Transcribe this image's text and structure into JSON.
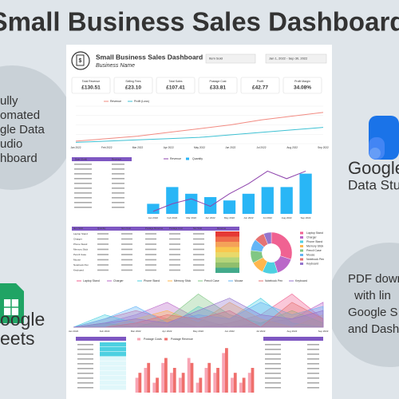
{
  "header": {
    "title": "Small Business Sales Dashboard"
  },
  "left_badge": {
    "lines": [
      "ully",
      "omated",
      "gle Data",
      "udio",
      "hboard"
    ]
  },
  "sheets_badge": {
    "lines": [
      "oogle",
      "eets"
    ]
  },
  "studio_badge": {
    "lines": [
      "Google",
      "Data Stu"
    ]
  },
  "pdf_badge": {
    "lines": [
      "PDF down",
      "with lin",
      "Google S",
      "and Dashb"
    ]
  },
  "dashboard": {
    "title": "Small Business Sales Dashboard",
    "subtitle": "Business Name",
    "filters": [
      "Item Sold",
      "Jan 1, 2022 - Sep 30, 2022"
    ],
    "kpis": [
      {
        "label": "Total Revenue",
        "value": "£130.51"
      },
      {
        "label": "Selling Fees",
        "value": "£23.10"
      },
      {
        "label": "Total Sales",
        "value": "£107.41"
      },
      {
        "label": "Postage Cost",
        "value": "£33.81"
      },
      {
        "label": "Profit",
        "value": "£42.77"
      },
      {
        "label": "Profit Margin",
        "value": "34.08%"
      }
    ],
    "date_table": {
      "header": [
        "Date (Sold)",
        "Revenue"
      ]
    },
    "items_table": {
      "header": [
        "Item Sold",
        "Quantity",
        "Item Cost",
        "Postage Revenue",
        "Postage Cost",
        "Net Total",
        "Revenue"
      ],
      "rows": [
        "Laptop Stand",
        "Charger",
        "Phone Stand",
        "Memory Stick",
        "Pencil Case",
        "Mouse",
        "Notebook Pen",
        "Keyboard"
      ]
    }
  },
  "chart_data": [
    {
      "type": "line",
      "categories": [
        "Jan 2022",
        "Feb 2022",
        "Mar 2022",
        "Apr 2022",
        "May 2022",
        "Jun 2022",
        "Jul 2022",
        "Aug 2022",
        "Sep 2022"
      ],
      "ylim": [
        0,
        30
      ],
      "series": [
        {
          "name": "Revenue",
          "color": "#f28b82",
          "values": [
            2,
            4,
            6,
            9,
            12,
            15,
            19,
            22,
            25
          ]
        },
        {
          "name": "Profit (Loss)",
          "color": "#3ec1d3",
          "values": [
            1,
            2,
            3,
            4,
            5,
            7,
            9,
            11,
            13
          ]
        }
      ]
    },
    {
      "type": "combo",
      "categories": [
        "Jan 2022",
        "Feb 2022",
        "Mar 2022",
        "Apr 2022",
        "May 2022",
        "Jun 2022",
        "Jul 2022",
        "Aug 2022",
        "Sep 2022"
      ],
      "ylim": [
        0,
        20
      ],
      "y2lim": [
        0,
        15
      ],
      "series": [
        {
          "name": "Revenue",
          "color": "#8e44ad",
          "values": [
            1,
            4,
            6,
            3,
            8,
            12,
            17,
            14,
            17
          ]
        },
        {
          "name": "Quantity",
          "color": "#29b6f6",
          "axis": "y2",
          "values": [
            3,
            8,
            6,
            5,
            4,
            6,
            8,
            8,
            12
          ]
        }
      ]
    },
    {
      "type": "pie",
      "categories": [
        "Laptop Stand",
        "Charger",
        "Phone Stand",
        "Memory Stick",
        "Pencil Case",
        "Mouse",
        "Notebook Pen",
        "Keyboard"
      ],
      "colors": [
        "#f06292",
        "#ba68c8",
        "#4dd0e1",
        "#ffb74d",
        "#81c784",
        "#64b5f6",
        "#e57373",
        "#9575cd"
      ],
      "values": [
        30,
        15,
        12,
        10,
        10,
        9,
        8,
        6
      ]
    },
    {
      "type": "area",
      "categories": [
        "Jan 2022",
        "Feb 2022",
        "Mar 2022",
        "Apr 2022",
        "May 2022",
        "Jun 2022",
        "Jul 2022",
        "Aug 2022",
        "Sep 2022"
      ],
      "ylim": [
        0,
        10
      ],
      "series": [
        {
          "name": "Laptop Stand",
          "color": "#f06292",
          "values": [
            0,
            2,
            4,
            2,
            0,
            1,
            3,
            8,
            2
          ]
        },
        {
          "name": "Charger",
          "color": "#ba68c8",
          "values": [
            0,
            1,
            3,
            6,
            2,
            0,
            1,
            2,
            6
          ]
        },
        {
          "name": "Phone Stand",
          "color": "#4dd0e1",
          "values": [
            0,
            3,
            1,
            0,
            5,
            2,
            7,
            1,
            0
          ]
        },
        {
          "name": "Memory Stick",
          "color": "#ffb74d",
          "values": [
            0,
            0,
            2,
            4,
            1,
            6,
            2,
            0,
            3
          ]
        },
        {
          "name": "Pencil Case",
          "color": "#81c784",
          "values": [
            0,
            1,
            0,
            2,
            8,
            3,
            1,
            4,
            1
          ]
        },
        {
          "name": "Mouse",
          "color": "#64b5f6",
          "values": [
            0,
            2,
            5,
            1,
            3,
            2,
            6,
            3,
            5
          ]
        },
        {
          "name": "Notebook Pen",
          "color": "#e57373",
          "values": [
            0,
            0,
            1,
            3,
            2,
            4,
            0,
            6,
            2
          ]
        },
        {
          "name": "Keyboard",
          "color": "#9575cd",
          "values": [
            0,
            1,
            2,
            1,
            4,
            7,
            3,
            2,
            4
          ]
        }
      ]
    },
    {
      "type": "bar",
      "categories": [
        null,
        null,
        null,
        null,
        null,
        null,
        null,
        null,
        null,
        null,
        null,
        null,
        null,
        null
      ],
      "ylim": [
        0,
        10
      ],
      "series": [
        {
          "name": "Postage Costs",
          "color": "#f8a5b4",
          "values": [
            3,
            5,
            2,
            6,
            4,
            3,
            7,
            2,
            5,
            4,
            8,
            3,
            2,
            4
          ]
        },
        {
          "name": "Postage Revenue",
          "color": "#ef6f6c",
          "values": [
            4,
            6,
            3,
            7,
            5,
            4,
            6,
            3,
            6,
            5,
            9,
            4,
            3,
            5
          ]
        }
      ]
    }
  ]
}
